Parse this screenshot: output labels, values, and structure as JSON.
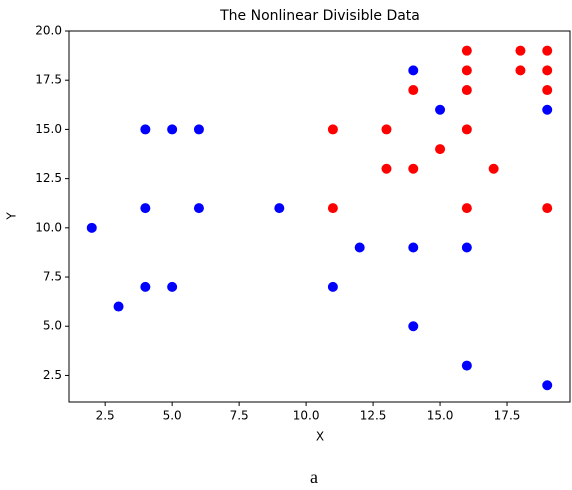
{
  "chart_data": {
    "type": "scatter",
    "title": "The Nonlinear Divisible Data",
    "x_label": "X",
    "y_label": "Y",
    "caption": "a",
    "xlim": [
      1.15,
      19.85
    ],
    "ylim": [
      1.15,
      20.0
    ],
    "xticks": [
      2.5,
      {
        "value": 5,
        "label": "5.0"
      },
      7.5,
      {
        "value": 10,
        "label": "10.0"
      },
      12.5,
      {
        "value": 15,
        "label": "15.0"
      },
      17.5
    ],
    "yticks": [
      2.5,
      {
        "value": 5,
        "label": "5.0"
      },
      7.5,
      {
        "value": 10,
        "label": "10.0"
      },
      12.5,
      {
        "value": 15,
        "label": "15.0"
      },
      17.5,
      {
        "value": 20,
        "label": "20.0"
      }
    ],
    "series": [
      {
        "color": "#0000ff",
        "x": [
          2,
          3,
          4,
          4,
          4,
          5,
          5,
          6,
          6,
          9,
          11,
          12,
          14,
          14,
          14,
          15,
          16,
          16,
          19,
          19
        ],
        "values": [
          10,
          6,
          15,
          11,
          7,
          15,
          7,
          15,
          11,
          11,
          7,
          9,
          18,
          9,
          5,
          16,
          9,
          3,
          16,
          2
        ]
      },
      {
        "color": "#ff0000",
        "x": [
          11,
          11,
          13,
          13,
          14,
          14,
          15,
          16,
          16,
          16,
          16,
          16,
          17,
          18,
          18,
          19,
          19,
          19,
          19
        ],
        "values": [
          15,
          11,
          15,
          13,
          17,
          13,
          14,
          19,
          18,
          17,
          15,
          11,
          13,
          19,
          18,
          19,
          18,
          17,
          11
        ]
      }
    ]
  }
}
